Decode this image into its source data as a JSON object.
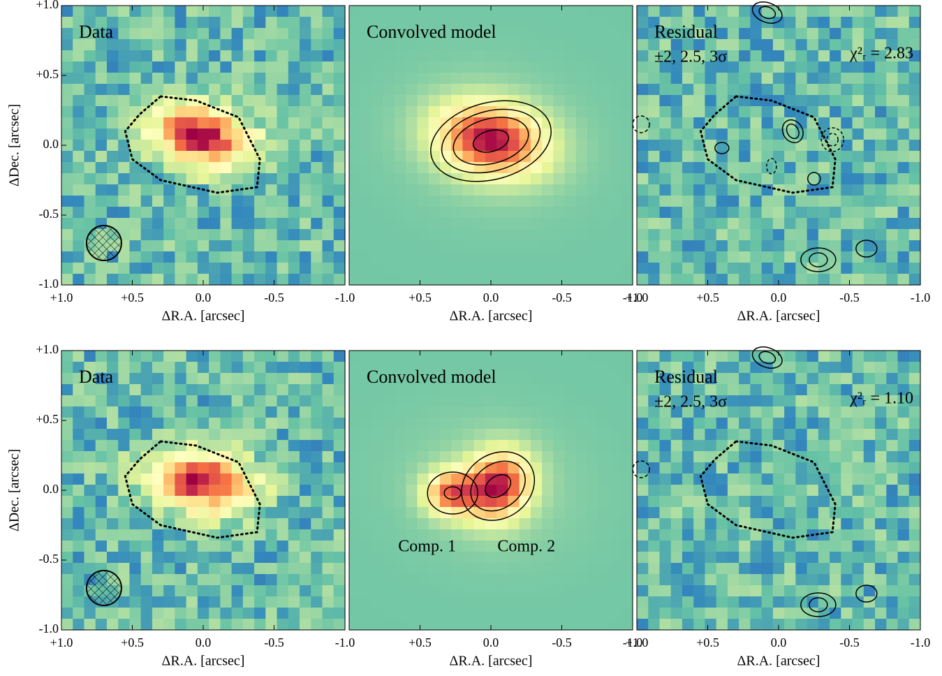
{
  "chart_data": [
    {
      "type": "image",
      "title": "Data",
      "xlabel": "ΔR.A. [arcsec]",
      "ylabel": "ΔDec. [arcsec]",
      "xlim": [
        1,
        -1
      ],
      "xticks": [
        {
          "value": 1,
          "label": "+1.0"
        },
        {
          "value": 0.5,
          "label": "+0.5"
        },
        {
          "value": 0,
          "label": "0.0"
        },
        {
          "value": -0.5,
          "label": "-0.5"
        },
        {
          "value": -1,
          "label": "-1.0"
        }
      ],
      "ylim": [
        -1,
        1
      ],
      "yticks": [
        {
          "value": 1,
          "label": "+1.0"
        },
        {
          "value": 0.5,
          "label": "+0.5"
        },
        {
          "value": 0,
          "label": "0.0"
        },
        {
          "value": -0.5,
          "label": "-0.5"
        },
        {
          "value": -1,
          "label": "-1.0"
        }
      ]
    },
    {
      "type": "image",
      "title": "Convolved model",
      "xlabel": "ΔR.A. [arcsec]",
      "xlim": [
        1,
        -1
      ],
      "xticks": [
        {
          "value": 0.5,
          "label": "+0.5"
        },
        {
          "value": 0,
          "label": "0.0"
        },
        {
          "value": -0.5,
          "label": "-0.5"
        },
        {
          "value": -1,
          "label": "-1.0"
        }
      ],
      "ylim": [
        -1,
        1
      ]
    },
    {
      "type": "image",
      "title": "Residual",
      "annotations": [
        "±2, 2.5, 3σ",
        "χ²ᵣ = 2.83"
      ],
      "xlabel": "ΔR.A. [arcsec]",
      "xlim": [
        1,
        -1
      ],
      "xticks": [
        {
          "value": 1,
          "label": "+1.0"
        },
        {
          "value": 0.5,
          "label": "+0.5"
        },
        {
          "value": 0,
          "label": "0.0"
        },
        {
          "value": -0.5,
          "label": "-0.5"
        },
        {
          "value": -1,
          "label": "-1.0"
        }
      ],
      "ylim": [
        -1,
        1
      ]
    },
    {
      "type": "image",
      "title": "Data",
      "xlabel": "ΔR.A. [arcsec]",
      "ylabel": "ΔDec. [arcsec]",
      "xlim": [
        1,
        -1
      ],
      "xticks": [
        {
          "value": 1,
          "label": "+1.0"
        },
        {
          "value": 0.5,
          "label": "+0.5"
        },
        {
          "value": 0,
          "label": "0.0"
        },
        {
          "value": -0.5,
          "label": "-0.5"
        },
        {
          "value": -1,
          "label": "-1.0"
        }
      ],
      "ylim": [
        -1,
        1
      ],
      "yticks": [
        {
          "value": 1,
          "label": "+1.0"
        },
        {
          "value": 0.5,
          "label": "+0.5"
        },
        {
          "value": 0,
          "label": "0.0"
        },
        {
          "value": -0.5,
          "label": "-0.5"
        },
        {
          "value": -1,
          "label": "-1.0"
        }
      ]
    },
    {
      "type": "image",
      "title": "Convolved model",
      "annotations": [
        "Comp. 1",
        "Comp. 2"
      ],
      "xlabel": "ΔR.A. [arcsec]",
      "xlim": [
        1,
        -1
      ],
      "xticks": [
        {
          "value": 0.5,
          "label": "+0.5"
        },
        {
          "value": 0,
          "label": "0.0"
        },
        {
          "value": -0.5,
          "label": "-0.5"
        },
        {
          "value": -1,
          "label": "-1.0"
        }
      ],
      "ylim": [
        -1,
        1
      ]
    },
    {
      "type": "image",
      "title": "Residual",
      "annotations": [
        "±2, 2.5, 3σ",
        "χ²ᵣ = 1.10"
      ],
      "xlabel": "ΔR.A. [arcsec]",
      "xlim": [
        1,
        -1
      ],
      "xticks": [
        {
          "value": 1,
          "label": "+1.0"
        },
        {
          "value": 0.5,
          "label": "+0.5"
        },
        {
          "value": 0,
          "label": "0.0"
        },
        {
          "value": -0.5,
          "label": "-0.5"
        },
        {
          "value": -1,
          "label": "-1.0"
        }
      ],
      "ylim": [
        -1,
        1
      ]
    }
  ]
}
